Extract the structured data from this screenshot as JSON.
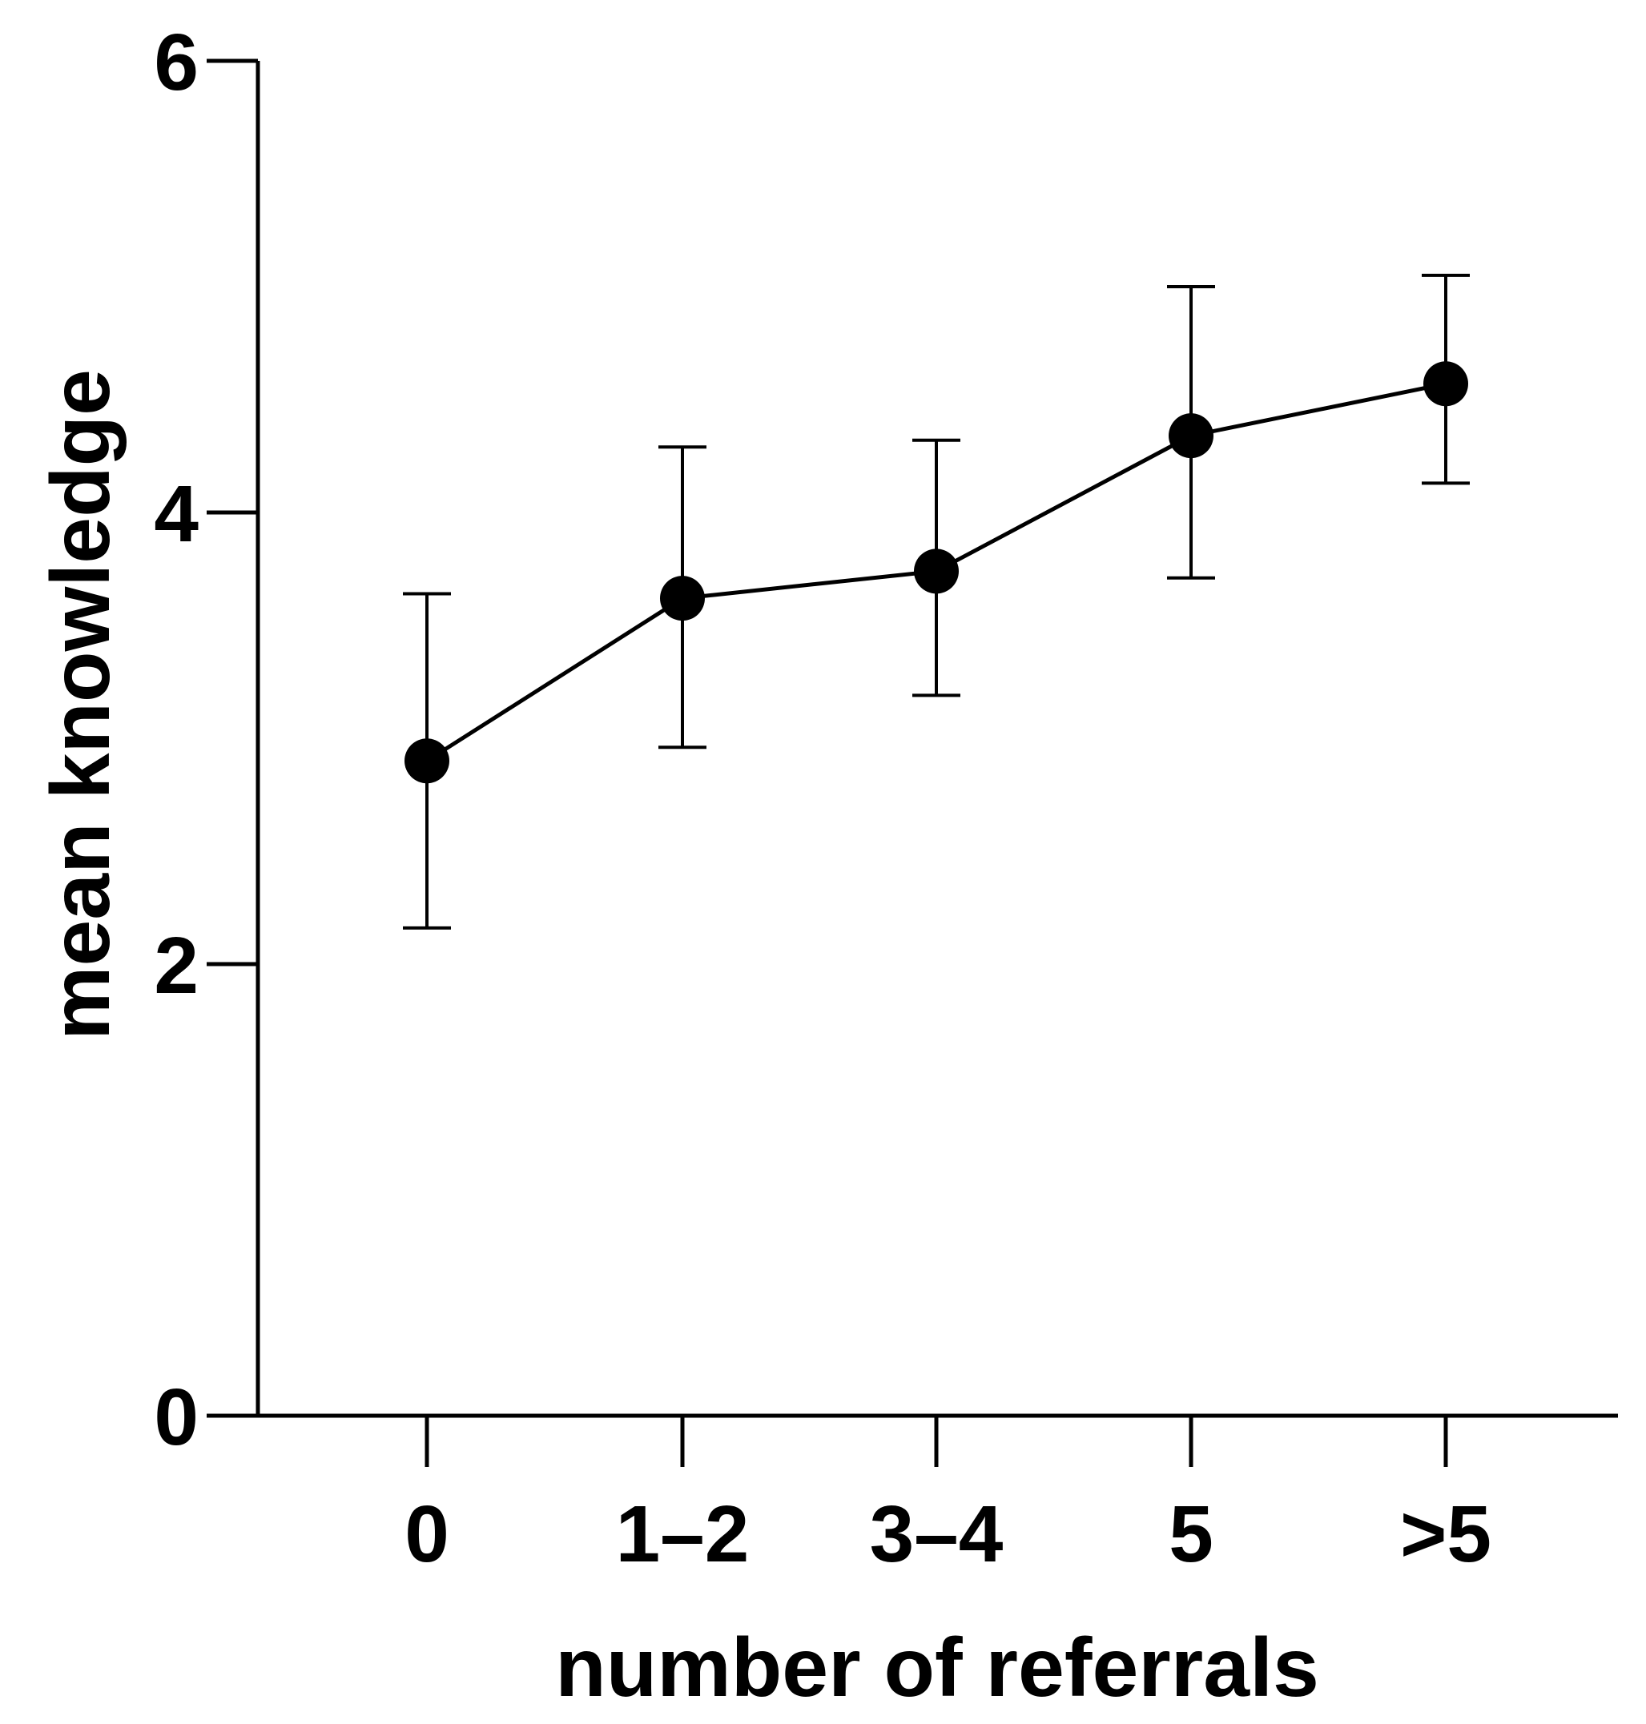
{
  "chart_data": {
    "type": "line",
    "xlabel": "number of referrals",
    "ylabel": "mean knowledge",
    "categories": [
      "0",
      "1–2",
      "3–4",
      "5",
      ">5"
    ],
    "series": [
      {
        "values": [
          2.9,
          3.62,
          3.74,
          4.34,
          4.57
        ],
        "error_low": [
          2.16,
          2.96,
          3.19,
          3.71,
          4.13
        ],
        "error_high": [
          3.64,
          4.29,
          4.32,
          5.0,
          5.05
        ]
      }
    ],
    "ylim": [
      0,
      6
    ],
    "yticks": [
      0,
      2,
      4,
      6
    ],
    "grid": false,
    "colors": {
      "line": "#000000",
      "marker": "#000000"
    }
  }
}
